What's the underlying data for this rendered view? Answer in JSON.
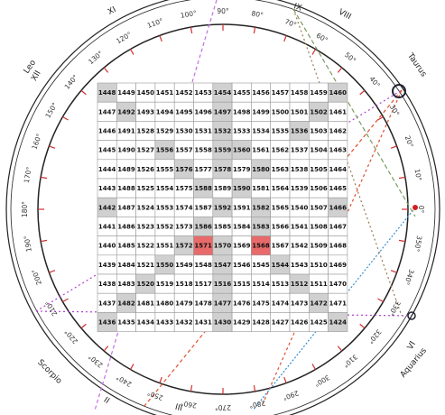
{
  "wheel": {
    "signs": [
      "Leo",
      "Taurus",
      "Scorpio",
      "Aquarius"
    ],
    "houses": [
      "XII",
      "XI",
      "IX",
      "VIII",
      "VI",
      "III",
      "II"
    ],
    "degrees": [
      {
        "value": 0,
        "label": "0°"
      },
      {
        "value": 10,
        "label": "10°"
      },
      {
        "value": 20,
        "label": "20°"
      },
      {
        "value": 30,
        "label": "30°"
      },
      {
        "value": 40,
        "label": "40°"
      },
      {
        "value": 50,
        "label": "50°"
      },
      {
        "value": 60,
        "label": "60°"
      },
      {
        "value": 70,
        "label": "70°"
      },
      {
        "value": 80,
        "label": "80°"
      },
      {
        "value": 90,
        "label": "90°"
      },
      {
        "value": 100,
        "label": "100°"
      },
      {
        "value": 110,
        "label": "110°"
      },
      {
        "value": 120,
        "label": "120°"
      },
      {
        "value": 130,
        "label": "130°"
      },
      {
        "value": 140,
        "label": "140°"
      },
      {
        "value": 150,
        "label": "150°"
      },
      {
        "value": 160,
        "label": "160°"
      },
      {
        "value": 170,
        "label": "170°"
      },
      {
        "value": 180,
        "label": "180°"
      },
      {
        "value": 190,
        "label": "190°"
      },
      {
        "value": 200,
        "label": "200°"
      },
      {
        "value": 210,
        "label": "210°"
      },
      {
        "value": 220,
        "label": "220°"
      },
      {
        "value": 230,
        "label": "230°"
      },
      {
        "value": 240,
        "label": "240°"
      },
      {
        "value": 250,
        "label": "250°"
      },
      {
        "value": 260,
        "label": "260°"
      },
      {
        "value": 270,
        "label": "270°"
      },
      {
        "value": 280,
        "label": "280°"
      },
      {
        "value": 290,
        "label": "290°"
      },
      {
        "value": 300,
        "label": "300°"
      },
      {
        "value": 310,
        "label": "310°"
      },
      {
        "value": 320,
        "label": "320°"
      },
      {
        "value": 330,
        "label": "330°"
      },
      {
        "value": 340,
        "label": "340°"
      },
      {
        "value": 350,
        "label": "350°"
      }
    ]
  },
  "grid": {
    "rows": [
      [
        1448,
        1449,
        1450,
        1451,
        1452,
        1453,
        1454,
        1455,
        1456,
        1457,
        1458,
        1459,
        1460
      ],
      [
        1447,
        1492,
        1493,
        1494,
        1495,
        1496,
        1497,
        1498,
        1499,
        1500,
        1501,
        1502,
        1461
      ],
      [
        1446,
        1491,
        1528,
        1529,
        1530,
        1531,
        1532,
        1533,
        1534,
        1535,
        1536,
        1503,
        1462
      ],
      [
        1445,
        1490,
        1527,
        1556,
        1557,
        1558,
        1559,
        1560,
        1561,
        1562,
        1537,
        1504,
        1463
      ],
      [
        1444,
        1489,
        1526,
        1555,
        1576,
        1577,
        1578,
        1579,
        1580,
        1563,
        1538,
        1505,
        1464
      ],
      [
        1443,
        1488,
        1525,
        1554,
        1575,
        1588,
        1589,
        1590,
        1581,
        1564,
        1539,
        1506,
        1465
      ],
      [
        1442,
        1487,
        1524,
        1553,
        1574,
        1587,
        1592,
        1591,
        1582,
        1565,
        1540,
        1507,
        1466
      ],
      [
        1441,
        1486,
        1523,
        1552,
        1573,
        1586,
        1585,
        1584,
        1583,
        1566,
        1541,
        1508,
        1467
      ],
      [
        1440,
        1485,
        1522,
        1551,
        1572,
        1571,
        1570,
        1569,
        1568,
        1567,
        1542,
        1509,
        1468
      ],
      [
        1439,
        1484,
        1521,
        1550,
        1549,
        1548,
        1547,
        1546,
        1545,
        1544,
        1543,
        1510,
        1469
      ],
      [
        1438,
        1483,
        1520,
        1519,
        1518,
        1517,
        1516,
        1515,
        1514,
        1513,
        1512,
        1511,
        1470
      ],
      [
        1437,
        1482,
        1481,
        1480,
        1479,
        1478,
        1477,
        1476,
        1475,
        1474,
        1473,
        1472,
        1471
      ],
      [
        1436,
        1435,
        1434,
        1433,
        1432,
        1431,
        1430,
        1429,
        1428,
        1427,
        1426,
        1425,
        1424
      ]
    ],
    "shaded": [
      1448,
      1454,
      1460,
      1492,
      1497,
      1502,
      1532,
      1536,
      1556,
      1559,
      1560,
      1576,
      1578,
      1580,
      1588,
      1590,
      1442,
      1466,
      1592,
      1582,
      1586,
      1583,
      1572,
      1570,
      1550,
      1547,
      1544,
      1520,
      1516,
      1512,
      1482,
      1477,
      1472,
      1436,
      1430,
      1424
    ],
    "highlighted": [
      1571,
      1568
    ]
  }
}
